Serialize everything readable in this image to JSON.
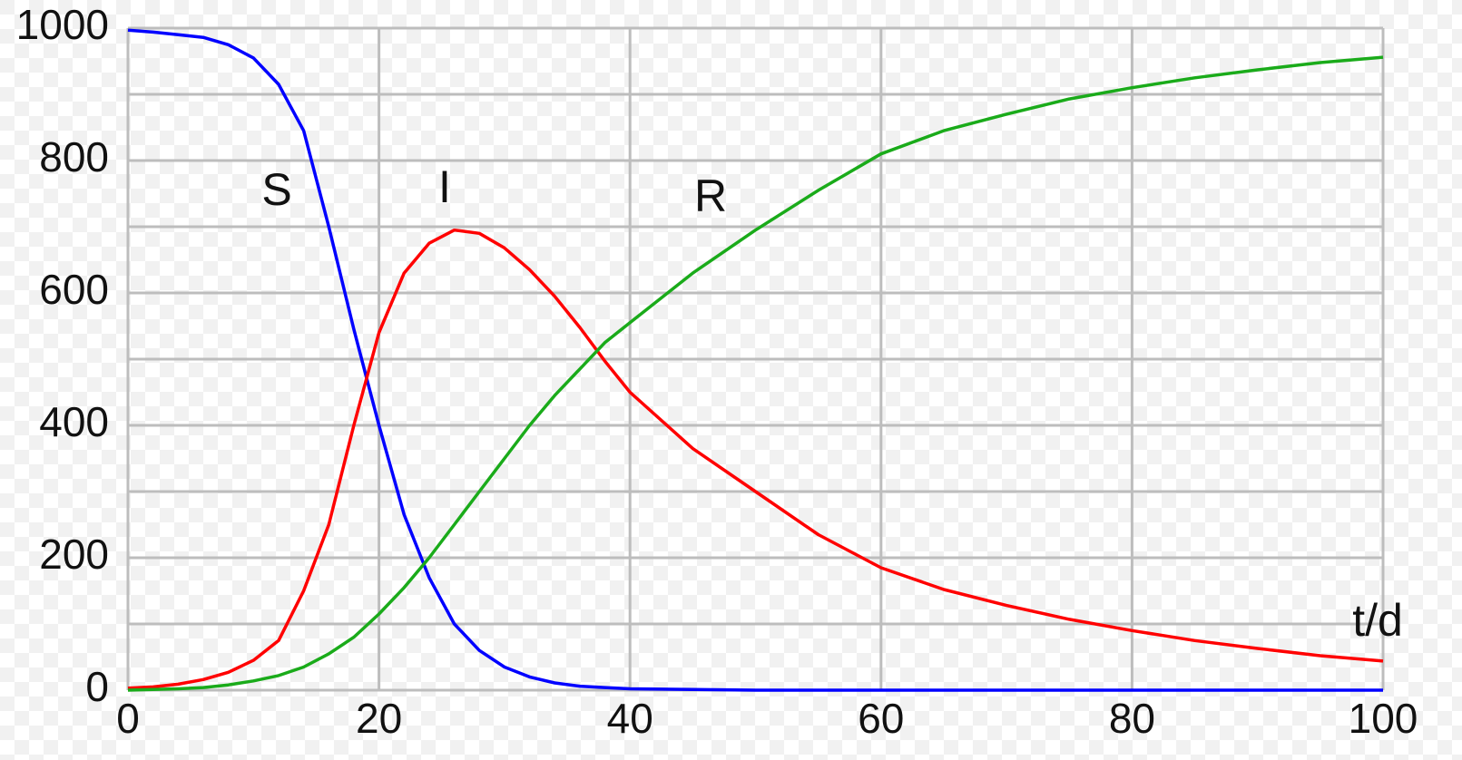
{
  "chart_data": {
    "type": "line",
    "x_label": "t/d",
    "x": [
      0,
      2,
      4,
      6,
      8,
      10,
      12,
      14,
      16,
      18,
      20,
      22,
      24,
      26,
      28,
      30,
      32,
      34,
      36,
      38,
      40,
      45,
      50,
      55,
      60,
      65,
      70,
      75,
      80,
      85,
      90,
      95,
      100
    ],
    "series": [
      {
        "name": "S",
        "color": "#0000ff",
        "values": [
          997,
          994,
          990,
          986,
          975,
          955,
          915,
          845,
          700,
          545,
          400,
          265,
          170,
          100,
          60,
          35,
          20,
          11,
          6,
          4,
          2,
          1,
          0,
          0,
          0,
          0,
          0,
          0,
          0,
          0,
          0,
          0,
          0
        ]
      },
      {
        "name": "I",
        "color": "#ff0000",
        "values": [
          3,
          5,
          9,
          16,
          27,
          45,
          75,
          150,
          250,
          400,
          540,
          630,
          675,
          695,
          690,
          668,
          635,
          595,
          548,
          497,
          450,
          365,
          300,
          235,
          185,
          152,
          128,
          107,
          90,
          75,
          63,
          52,
          44
        ]
      },
      {
        "name": "R",
        "color": "#1aab1a",
        "values": [
          0,
          1,
          2,
          4,
          8,
          14,
          22,
          35,
          55,
          80,
          115,
          155,
          200,
          250,
          300,
          350,
          400,
          445,
          485,
          525,
          555,
          630,
          695,
          755,
          810,
          845,
          870,
          893,
          910,
          925,
          937,
          948,
          956
        ]
      }
    ],
    "xlim": [
      0,
      100
    ],
    "ylim": [
      0,
      1000
    ],
    "xticks": [
      0,
      20,
      40,
      60,
      80,
      100
    ],
    "yticks": [
      0,
      200,
      400,
      600,
      800,
      1000
    ],
    "y_minor_grid": [
      100,
      300,
      500,
      700,
      900
    ],
    "grid": true
  }
}
